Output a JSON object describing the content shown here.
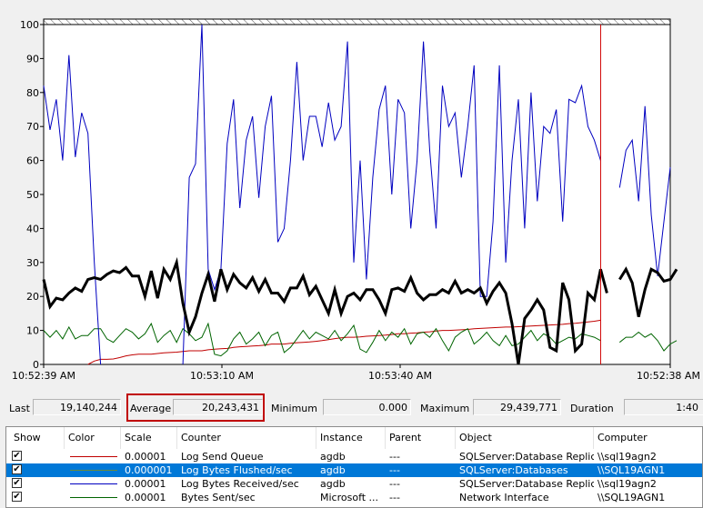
{
  "chart_data": {
    "type": "line",
    "ylim": [
      0,
      100
    ],
    "yticks": [
      "0",
      "10",
      "20",
      "30",
      "40",
      "50",
      "60",
      "70",
      "80",
      "90",
      "100"
    ],
    "xticks": [
      "10:52:39 AM",
      "10:53:10 AM",
      "10:53:40 AM",
      "10:52:38 AM"
    ],
    "grid": false,
    "current_time_marker_index": 88,
    "series": [
      {
        "name": "Log Send Queue",
        "color": "#c00000",
        "width": 1,
        "values": [
          null,
          null,
          null,
          null,
          null,
          null,
          null,
          0,
          1,
          1.5,
          1.5,
          1.6,
          2,
          2.5,
          2.8,
          3,
          3,
          3,
          3.2,
          3.4,
          3.5,
          3.6,
          3.8,
          4,
          4,
          4,
          4.3,
          4.5,
          4.6,
          4.7,
          5,
          5.2,
          5.3,
          5.4,
          5.5,
          5.7,
          6,
          6,
          6,
          6.2,
          6.4,
          6.5,
          6.6,
          6.8,
          7,
          7.3,
          7.6,
          7.8,
          8,
          8,
          8.1,
          8.3,
          8.4,
          8.5,
          8.6,
          8.8,
          9,
          9,
          9.2,
          9.3,
          9.5,
          9.6,
          9.8,
          10,
          10,
          10.1,
          10.2,
          10.3,
          10.5,
          10.6,
          10.7,
          10.8,
          10.9,
          11,
          11,
          11.1,
          11.2,
          11.3,
          11.4,
          11.5,
          11.6,
          11.7,
          11.8,
          12,
          12.1,
          12.3,
          12.5,
          12.7,
          13,
          null,
          null,
          null,
          null,
          null,
          null,
          null,
          null,
          null,
          null,
          null
        ]
      },
      {
        "name": "Log Bytes Flushed/sec",
        "color": "#000000",
        "width": 3,
        "values": [
          25,
          17,
          19.5,
          19,
          21,
          22.5,
          21.5,
          25,
          25.5,
          25,
          26.5,
          27.5,
          27,
          28.5,
          26,
          26,
          20,
          27.5,
          19.5,
          28,
          25,
          30,
          18,
          9.5,
          14,
          21,
          26.5,
          18.5,
          28,
          22,
          26.5,
          24,
          22.5,
          25.5,
          21.5,
          25,
          21,
          21,
          18.5,
          22.5,
          22.5,
          26,
          20.5,
          23,
          19,
          15,
          22,
          15,
          20,
          21,
          19,
          22,
          22,
          19,
          15,
          22,
          22.5,
          21.5,
          25.5,
          21,
          19,
          20.5,
          20.5,
          22,
          21,
          24.5,
          21,
          22,
          21,
          22.5,
          18,
          21.5,
          24,
          21,
          12,
          0,
          13.5,
          16,
          19,
          16,
          5,
          4,
          24,
          19,
          4,
          6,
          21,
          19,
          28,
          21,
          null,
          25,
          28,
          24,
          14,
          22,
          28,
          27,
          24.5,
          25,
          28
        ]
      },
      {
        "name": "Log Bytes Received/sec",
        "color": "#0000c0",
        "width": 1,
        "values": [
          82,
          69,
          78,
          60,
          91,
          61,
          74,
          68,
          30,
          0,
          null,
          null,
          null,
          null,
          null,
          null,
          null,
          null,
          null,
          null,
          null,
          null,
          0,
          55,
          59,
          100,
          28,
          22,
          28,
          65,
          78,
          46,
          66,
          73,
          49,
          70,
          79,
          36,
          40,
          60,
          89,
          60,
          73,
          73,
          64,
          77,
          66,
          70,
          95,
          30,
          60,
          25,
          55,
          75,
          82,
          50,
          78,
          74,
          40,
          60,
          95,
          63,
          40,
          82,
          70,
          74,
          55,
          70,
          88,
          20,
          20,
          42,
          88,
          30,
          60,
          78,
          40,
          80,
          48,
          70,
          68,
          75,
          42,
          78,
          77,
          82,
          70,
          66,
          60,
          null,
          null,
          52,
          63,
          66,
          48,
          76,
          44,
          26,
          42,
          58
        ]
      },
      {
        "name": "Bytes Sent/sec",
        "color": "#006400",
        "width": 1,
        "values": [
          10,
          8,
          10,
          7.5,
          11,
          7.5,
          8.5,
          8.5,
          10.5,
          10.5,
          7.5,
          6.5,
          8.5,
          10.5,
          9.5,
          7.5,
          9,
          12,
          6.5,
          8.5,
          10,
          6.5,
          10.5,
          9,
          7,
          8,
          12,
          3,
          2.5,
          4,
          7.5,
          9.5,
          6,
          7.5,
          9.5,
          5.5,
          8.5,
          9.5,
          3.5,
          5,
          7.5,
          10,
          7.5,
          9.5,
          8.5,
          7.5,
          10,
          7,
          9,
          11.5,
          4.5,
          3.5,
          6.5,
          10,
          7,
          9.5,
          8,
          10.5,
          6,
          9,
          9.5,
          8,
          10.5,
          7,
          4,
          8,
          9.5,
          10.5,
          6,
          7.5,
          9.5,
          7,
          5.5,
          8.5,
          5.5,
          6,
          8,
          10,
          7,
          9,
          8,
          6,
          7,
          8,
          7.5,
          9,
          8.5,
          8,
          7,
          null,
          null,
          6.5,
          8,
          8,
          9.5,
          8,
          9,
          7,
          4,
          6,
          7
        ]
      }
    ]
  },
  "stats": {
    "last_label": "Last",
    "last_value": "19,140,244",
    "average_label": "Average",
    "average_value": "20,243,431",
    "minimum_label": "Minimum",
    "minimum_value": "0.000",
    "maximum_label": "Maximum",
    "maximum_value": "29,439,771",
    "duration_label": "Duration",
    "duration_value": "1:40"
  },
  "highlight_color": "#c00000",
  "table": {
    "columns": [
      "Show",
      "Color",
      "Scale",
      "Counter",
      "Instance",
      "Parent",
      "Object",
      "Computer"
    ],
    "rows": [
      {
        "show": true,
        "color": "#c00000",
        "scale": "0.00001",
        "counter": "Log Send Queue",
        "instance": "agdb",
        "parent": "---",
        "object": "SQLServer:Database Replica",
        "computer": "\\\\sql19agn2"
      },
      {
        "show": true,
        "color": "#000000",
        "scale": "0.000001",
        "counter": "Log Bytes Flushed/sec",
        "instance": "agdb",
        "parent": "---",
        "object": "SQLServer:Databases",
        "computer": "\\\\SQL19AGN1",
        "selected": true
      },
      {
        "show": true,
        "color": "#0000c0",
        "scale": "0.00001",
        "counter": "Log Bytes Received/sec",
        "instance": "agdb",
        "parent": "---",
        "object": "SQLServer:Database Replica",
        "computer": "\\\\sql19agn2"
      },
      {
        "show": true,
        "color": "#006400",
        "scale": "0.00001",
        "counter": "Bytes Sent/sec",
        "instance": "Microsoft ...",
        "parent": "---",
        "object": "Network Interface",
        "computer": "\\\\SQL19AGN1"
      }
    ]
  }
}
